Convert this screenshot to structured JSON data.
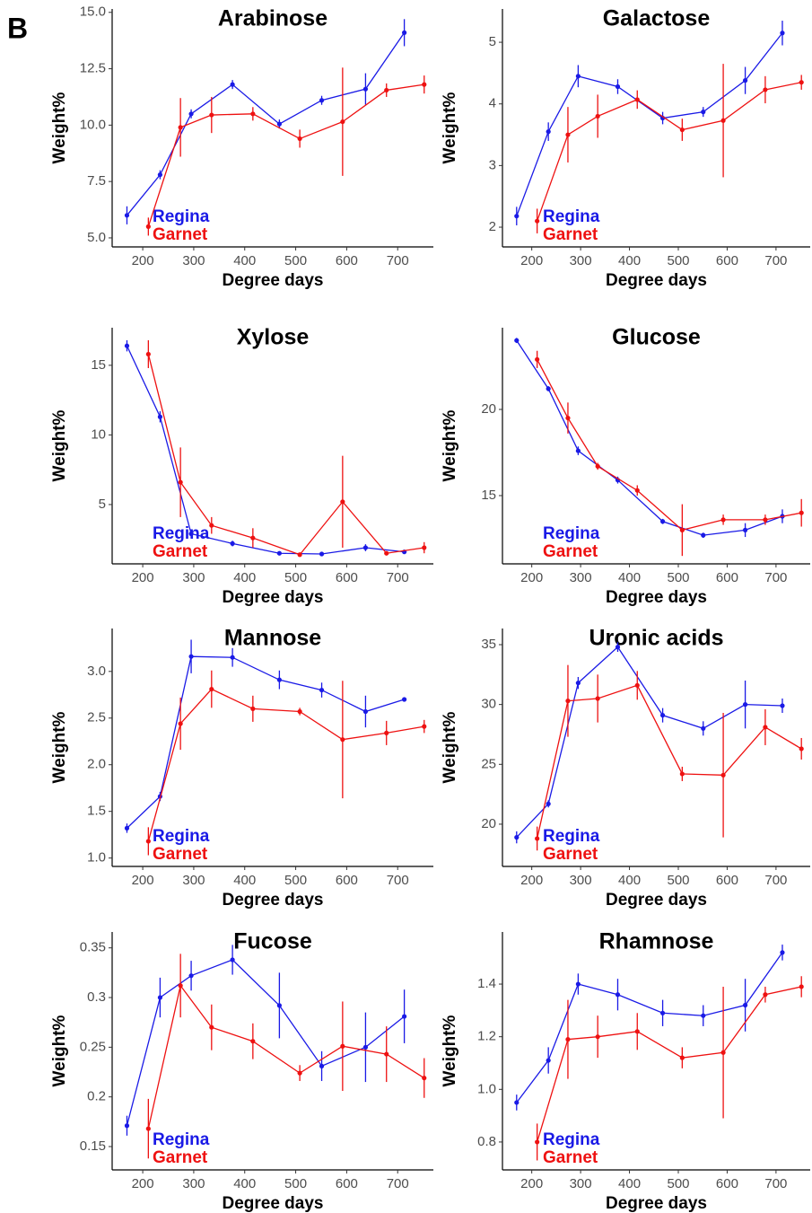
{
  "panel_label": "B",
  "chart_data": [
    {
      "type": "line",
      "title": "Arabinose",
      "x_label": "Degree days",
      "y_label": "Weight%",
      "legend": "bottom-left",
      "xlim": [
        140,
        770
      ],
      "xticks": [
        200,
        300,
        400,
        500,
        600,
        700
      ],
      "ylim": [
        4.6,
        15.15
      ],
      "yticks": [
        {
          "value": 5,
          "label": "5.0"
        },
        7.5,
        {
          "value": 10,
          "label": "10.0"
        },
        12.5,
        {
          "value": 15,
          "label": "15.0"
        }
      ],
      "series": [
        {
          "name": "Regina",
          "color": "#1a1ae6",
          "x": [
            169,
            234,
            295,
            376,
            468,
            551,
            637,
            713
          ],
          "values": [
            6.0,
            7.8,
            10.5,
            11.8,
            10.05,
            11.1,
            11.6,
            14.1
          ],
          "errors": [
            0.4,
            0.2,
            0.2,
            0.2,
            0.2,
            0.2,
            0.7,
            0.6
          ]
        },
        {
          "name": "Garnet",
          "color": "#ee1111",
          "x": [
            211,
            274,
            335,
            416,
            508,
            592,
            678,
            752
          ],
          "values": [
            5.5,
            9.9,
            10.45,
            10.5,
            9.4,
            10.15,
            11.55,
            11.8
          ],
          "errors": [
            0.4,
            1.3,
            0.8,
            0.3,
            0.4,
            2.4,
            0.3,
            0.4
          ]
        }
      ]
    },
    {
      "type": "line",
      "title": "Galactose",
      "x_label": "Degree days",
      "y_label": "Weight%",
      "legend": "bottom-left",
      "xlim": [
        140,
        770
      ],
      "xticks": [
        200,
        300,
        400,
        500,
        600,
        700
      ],
      "ylim": [
        1.68,
        5.54
      ],
      "yticks": [
        2,
        3,
        4,
        5
      ],
      "series": [
        {
          "name": "Regina",
          "color": "#1a1ae6",
          "x": [
            169,
            234,
            295,
            376,
            468,
            551,
            637,
            713
          ],
          "values": [
            2.18,
            3.55,
            4.45,
            4.28,
            3.77,
            3.87,
            4.38,
            5.15
          ],
          "errors": [
            0.15,
            0.15,
            0.18,
            0.12,
            0.1,
            0.08,
            0.22,
            0.2
          ]
        },
        {
          "name": "Garnet",
          "color": "#ee1111",
          "x": [
            211,
            274,
            335,
            416,
            508,
            592,
            678,
            752
          ],
          "values": [
            2.1,
            3.5,
            3.8,
            4.07,
            3.58,
            3.73,
            4.23,
            4.35
          ],
          "errors": [
            0.2,
            0.45,
            0.35,
            0.15,
            0.18,
            0.92,
            0.22,
            0.12
          ]
        }
      ]
    },
    {
      "type": "line",
      "title": "Xylose",
      "x_label": "Degree days",
      "y_label": "Weight%",
      "legend": "bottom-left",
      "xlim": [
        140,
        770
      ],
      "xticks": [
        200,
        300,
        400,
        500,
        600,
        700
      ],
      "ylim": [
        0.74,
        17.7
      ],
      "yticks": [
        5,
        10,
        15
      ],
      "series": [
        {
          "name": "Regina",
          "color": "#1a1ae6",
          "x": [
            169,
            234,
            295,
            376,
            468,
            551,
            637,
            713
          ],
          "values": [
            16.4,
            11.3,
            2.9,
            2.2,
            1.5,
            1.45,
            1.9,
            1.6
          ],
          "errors": [
            0.4,
            0.4,
            0.3,
            0.2,
            0.1,
            0.1,
            0.25,
            0.15
          ]
        },
        {
          "name": "Garnet",
          "color": "#ee1111",
          "x": [
            211,
            274,
            335,
            416,
            508,
            592,
            678,
            752
          ],
          "values": [
            15.8,
            6.6,
            3.5,
            2.6,
            1.4,
            5.2,
            1.5,
            1.9
          ],
          "errors": [
            1.0,
            2.5,
            0.6,
            0.7,
            0.1,
            3.3,
            0.1,
            0.4
          ]
        }
      ]
    },
    {
      "type": "line",
      "title": "Glucose",
      "x_label": "Degree days",
      "y_label": "Weight%",
      "legend": "bottom-left",
      "xlim": [
        140,
        770
      ],
      "xticks": [
        200,
        300,
        400,
        500,
        600,
        700
      ],
      "ylim": [
        11.04,
        24.74
      ],
      "yticks": [
        15,
        20
      ],
      "series": [
        {
          "name": "Regina",
          "color": "#1a1ae6",
          "x": [
            169,
            234,
            295,
            376,
            468,
            551,
            637,
            713
          ],
          "values": [
            24.0,
            21.2,
            17.6,
            15.9,
            13.5,
            12.7,
            13.0,
            13.8
          ],
          "errors": [
            0.15,
            0.15,
            0.25,
            0.2,
            0.15,
            0.15,
            0.4,
            0.4
          ]
        },
        {
          "name": "Garnet",
          "color": "#ee1111",
          "x": [
            211,
            274,
            335,
            416,
            508,
            592,
            678,
            752
          ],
          "values": [
            22.9,
            19.5,
            16.7,
            15.3,
            13.0,
            13.6,
            13.6,
            14.0
          ],
          "errors": [
            0.5,
            0.9,
            0.2,
            0.3,
            1.5,
            0.3,
            0.3,
            0.8
          ]
        }
      ]
    },
    {
      "type": "line",
      "title": "Mannose",
      "x_label": "Degree days",
      "y_label": "Weight%",
      "legend": "bottom-left",
      "xlim": [
        140,
        770
      ],
      "xticks": [
        200,
        300,
        400,
        500,
        600,
        700
      ],
      "ylim": [
        0.91,
        3.46
      ],
      "yticks": [
        {
          "value": 1,
          "label": "1.0"
        },
        1.5,
        {
          "value": 2,
          "label": "2.0"
        },
        2.5,
        {
          "value": 3,
          "label": "3.0"
        }
      ],
      "series": [
        {
          "name": "Regina",
          "color": "#1a1ae6",
          "x": [
            169,
            234,
            295,
            376,
            468,
            551,
            637,
            713
          ],
          "values": [
            1.32,
            1.66,
            3.16,
            3.15,
            2.91,
            2.8,
            2.57,
            2.7
          ],
          "errors": [
            0.05,
            0.05,
            0.18,
            0.1,
            0.1,
            0.08,
            0.17,
            0.02
          ]
        },
        {
          "name": "Garnet",
          "color": "#ee1111",
          "x": [
            211,
            274,
            335,
            416,
            508,
            592,
            678,
            752
          ],
          "values": [
            1.18,
            2.44,
            2.81,
            2.6,
            2.57,
            2.27,
            2.34,
            2.41
          ],
          "errors": [
            0.15,
            0.28,
            0.2,
            0.14,
            0.04,
            0.63,
            0.13,
            0.07
          ]
        }
      ]
    },
    {
      "type": "line",
      "title": "Uronic acids",
      "x_label": "Degree days",
      "y_label": "Weight%",
      "legend": "bottom-left",
      "xlim": [
        140,
        770
      ],
      "xticks": [
        200,
        300,
        400,
        500,
        600,
        700
      ],
      "ylim": [
        16.47,
        36.35
      ],
      "yticks": [
        20,
        25,
        30,
        35
      ],
      "series": [
        {
          "name": "Regina",
          "color": "#1a1ae6",
          "x": [
            169,
            234,
            295,
            376,
            468,
            551,
            637,
            713
          ],
          "values": [
            18.9,
            21.7,
            31.8,
            34.8,
            29.1,
            28.0,
            30.0,
            29.9
          ],
          "errors": [
            0.5,
            0.3,
            0.5,
            0.4,
            0.6,
            0.6,
            2.0,
            0.6
          ]
        },
        {
          "name": "Garnet",
          "color": "#ee1111",
          "x": [
            211,
            274,
            335,
            416,
            508,
            592,
            678,
            752
          ],
          "values": [
            18.8,
            30.3,
            30.5,
            31.6,
            24.2,
            24.1,
            28.1,
            26.3
          ],
          "errors": [
            1.0,
            3.0,
            2.0,
            1.2,
            0.6,
            5.2,
            1.5,
            0.9
          ]
        }
      ]
    },
    {
      "type": "line",
      "title": "Fucose",
      "x_label": "Degree days",
      "y_label": "Weight%",
      "legend": "bottom-left",
      "xlim": [
        140,
        770
      ],
      "xticks": [
        200,
        300,
        400,
        500,
        600,
        700
      ],
      "ylim": [
        0.1265,
        0.366
      ],
      "yticks": [
        0.15,
        0.2,
        0.25,
        0.3,
        0.35
      ],
      "series": [
        {
          "name": "Regina",
          "color": "#1a1ae6",
          "x": [
            169,
            234,
            295,
            376,
            468,
            551,
            637,
            713
          ],
          "values": [
            0.171,
            0.3,
            0.322,
            0.338,
            0.292,
            0.231,
            0.25,
            0.281
          ],
          "errors": [
            0.01,
            0.02,
            0.015,
            0.015,
            0.033,
            0.015,
            0.035,
            0.027
          ]
        },
        {
          "name": "Garnet",
          "color": "#ee1111",
          "x": [
            211,
            274,
            335,
            416,
            508,
            592,
            678,
            752
          ],
          "values": [
            0.168,
            0.312,
            0.27,
            0.256,
            0.224,
            0.251,
            0.243,
            0.219
          ],
          "errors": [
            0.03,
            0.032,
            0.023,
            0.018,
            0.008,
            0.045,
            0.028,
            0.02
          ]
        }
      ]
    },
    {
      "type": "line",
      "title": "Rhamnose",
      "x_label": "Degree days",
      "y_label": "Weight%",
      "legend": "bottom-left",
      "xlim": [
        140,
        770
      ],
      "xticks": [
        200,
        300,
        400,
        500,
        600,
        700
      ],
      "ylim": [
        0.694,
        1.598
      ],
      "yticks": [
        0.8,
        {
          "value": 1,
          "label": "1.0"
        },
        1.2,
        1.4
      ],
      "series": [
        {
          "name": "Regina",
          "color": "#1a1ae6",
          "x": [
            169,
            234,
            295,
            376,
            468,
            551,
            637,
            713
          ],
          "values": [
            0.95,
            1.11,
            1.4,
            1.36,
            1.29,
            1.28,
            1.32,
            1.52
          ],
          "errors": [
            0.03,
            0.05,
            0.04,
            0.06,
            0.05,
            0.04,
            0.1,
            0.03
          ]
        },
        {
          "name": "Garnet",
          "color": "#ee1111",
          "x": [
            211,
            274,
            335,
            416,
            508,
            592,
            678,
            752
          ],
          "values": [
            0.8,
            1.19,
            1.2,
            1.22,
            1.12,
            1.14,
            1.36,
            1.39
          ],
          "errors": [
            0.07,
            0.15,
            0.08,
            0.07,
            0.04,
            0.25,
            0.03,
            0.04
          ]
        }
      ]
    }
  ]
}
